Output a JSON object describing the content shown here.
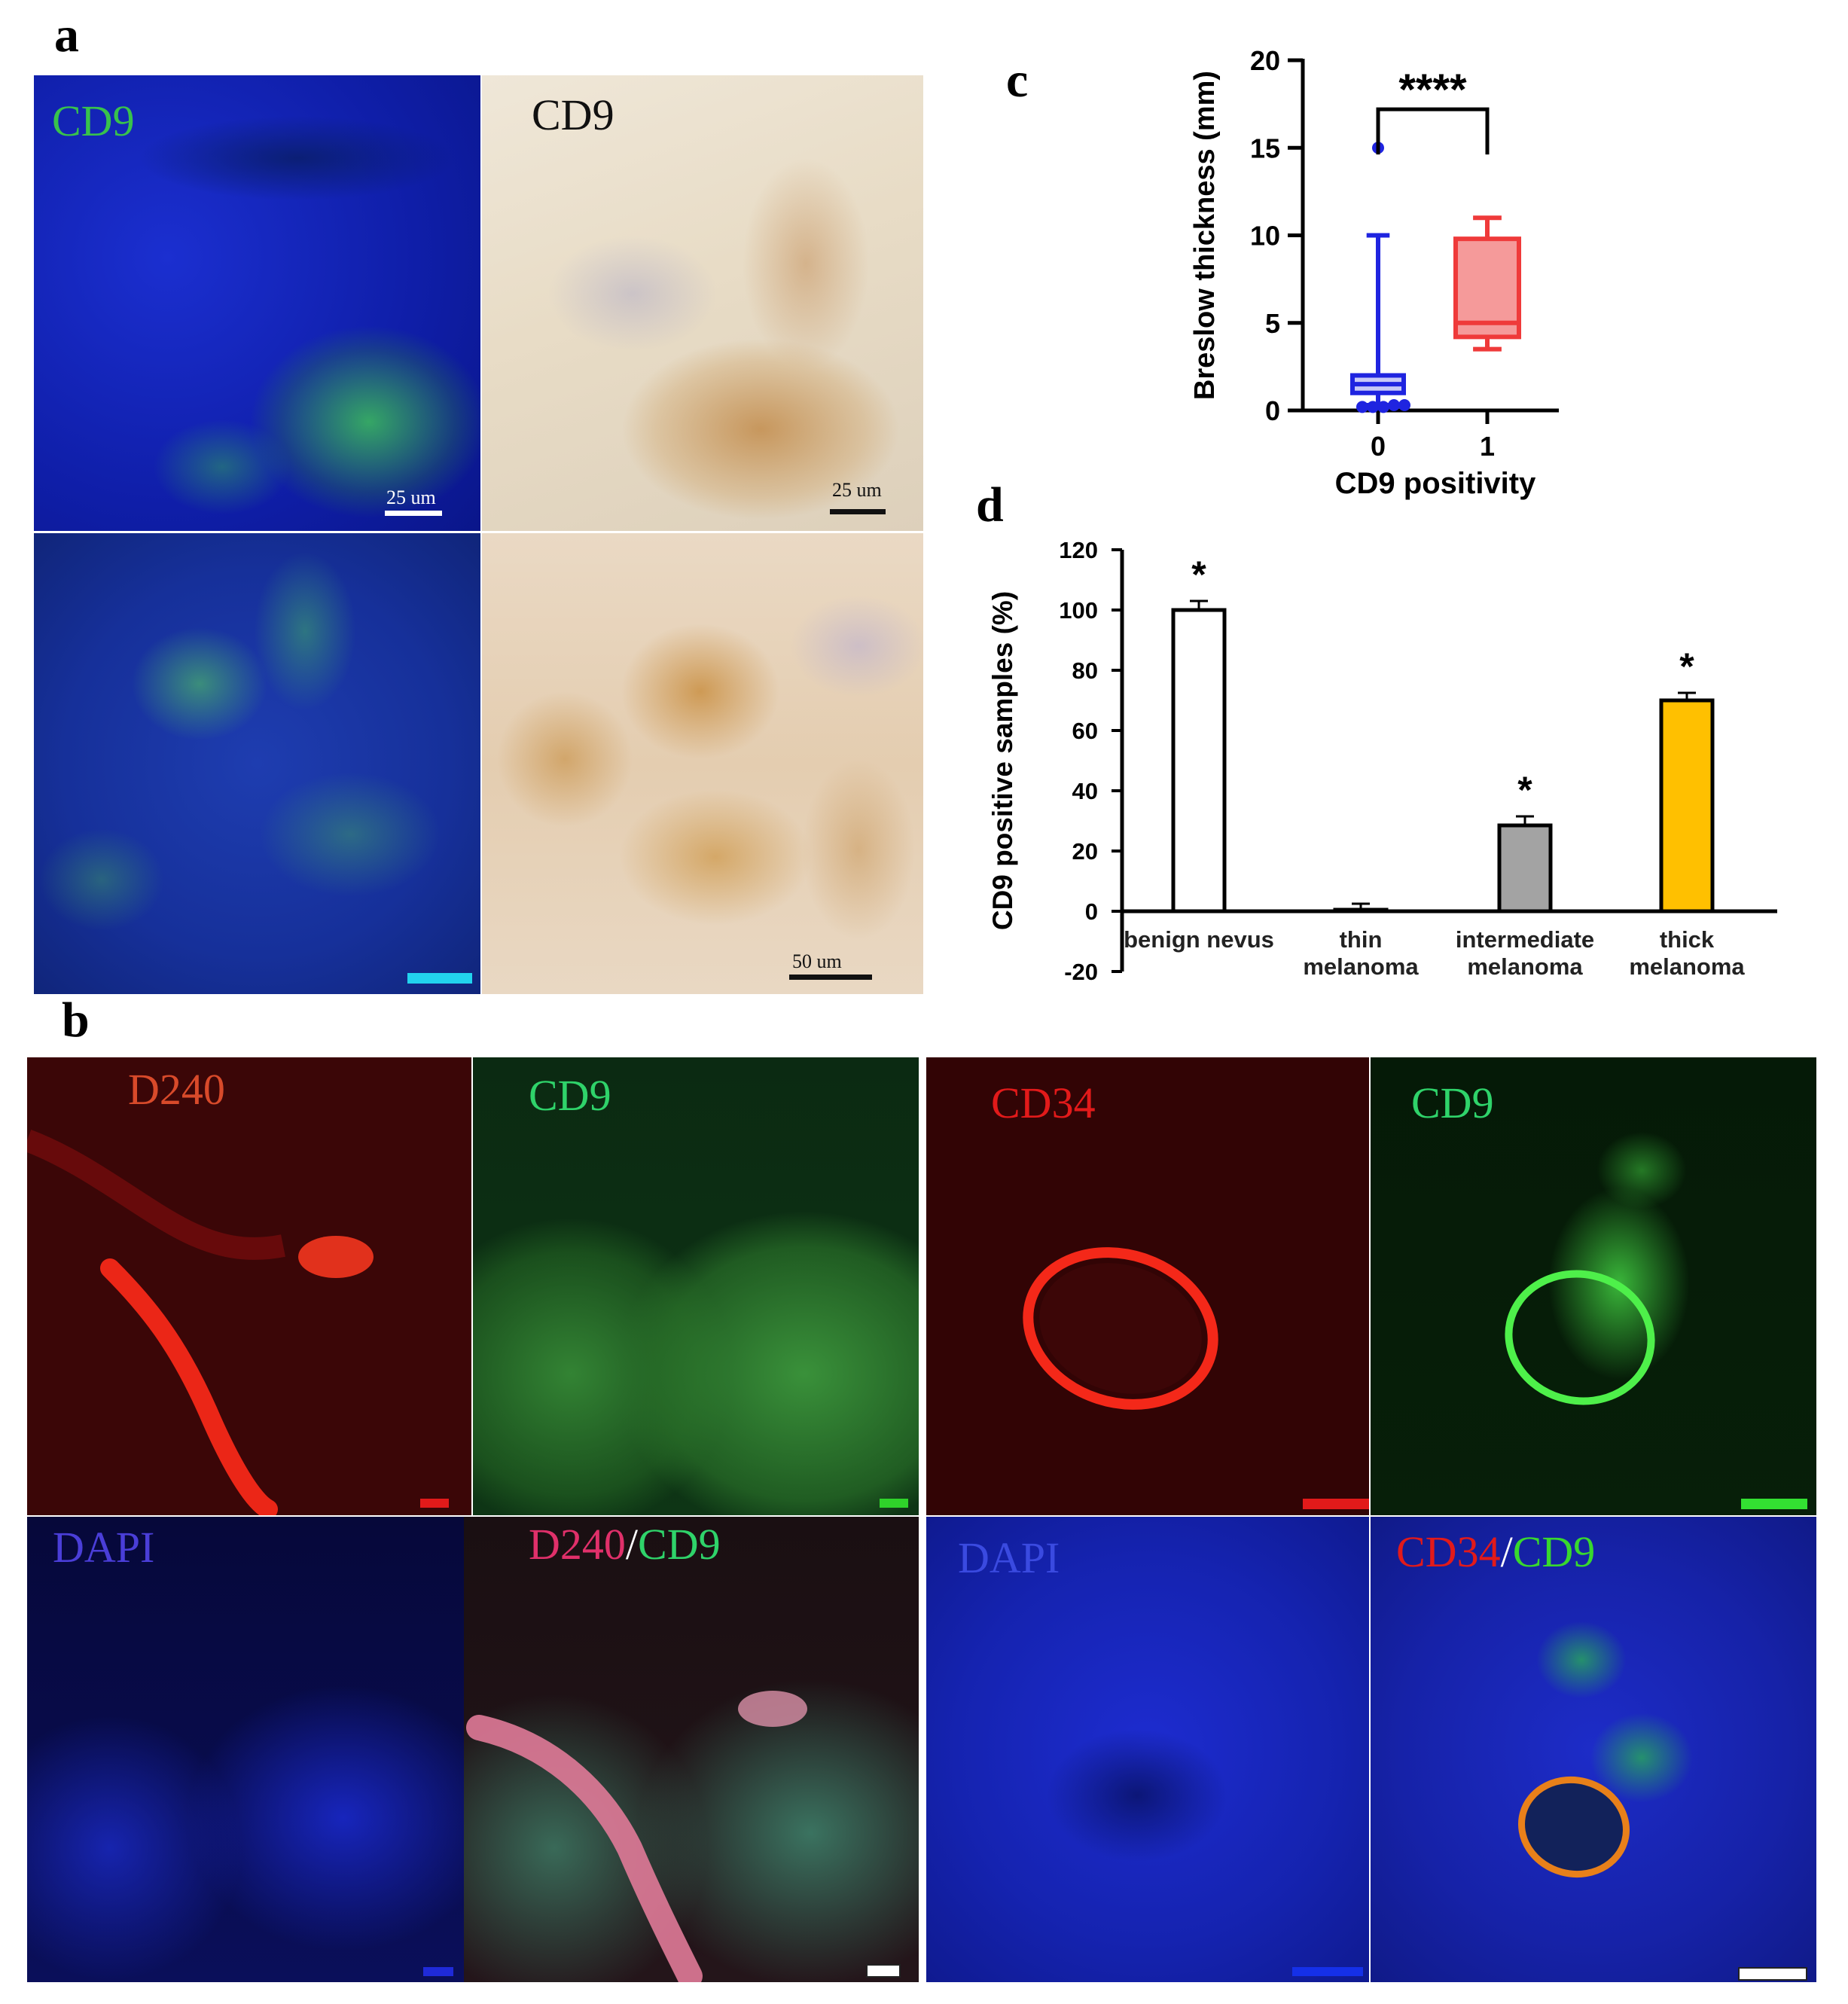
{
  "panel_letters": {
    "a": "a",
    "b": "b",
    "c": "c",
    "d": "d"
  },
  "panel_a": {
    "tiles": [
      {
        "label": "CD9",
        "label_color": "#38c24c",
        "scale": "25 um",
        "scale_color": "#ffffff",
        "bar_color": "#ffffff"
      },
      {
        "label": "CD9",
        "label_color": "#111111",
        "scale": "25 um",
        "scale_color": "#111111",
        "bar_color": "#111111"
      },
      {
        "label": "",
        "label_color": "#38c24c",
        "scale": "",
        "scale_color": "#ffffff",
        "bar_color": "#22d3ee"
      },
      {
        "label": "",
        "label_color": "#111111",
        "scale": "50 um",
        "scale_color": "#111111",
        "bar_color": "#111111"
      }
    ]
  },
  "panel_b": {
    "left_group": {
      "top_left": {
        "label": "D240",
        "color": "#d84a2a"
      },
      "top_right": {
        "label": "CD9",
        "color": "#2fd36a"
      },
      "bottom_left": {
        "label": "DAPI",
        "color": "#4a3ed8"
      },
      "bottom_right": {
        "label_a": "D240",
        "label_sep": "/",
        "label_b": "CD9",
        "color_a": "#e0306a",
        "color_sep": "#ffffff",
        "color_b": "#2fd36a"
      }
    },
    "right_group": {
      "top_left": {
        "label": "CD34",
        "color": "#e21a1a"
      },
      "top_right": {
        "label": "CD9",
        "color": "#2fd36a"
      },
      "bottom_left": {
        "label": "DAPI",
        "color": "#3a4ae0"
      },
      "bottom_right": {
        "label_a": "CD34",
        "label_sep": "/",
        "label_b": "CD9",
        "color_a": "#e21a1a",
        "color_sep": "#ffffff",
        "color_b": "#38d82e"
      }
    }
  },
  "chart_data": [
    {
      "panel": "c",
      "type": "box",
      "xlabel": "CD9 positivity",
      "ylabel": "Breslow thickness (mm)",
      "categories": [
        "0",
        "1"
      ],
      "ylim": [
        0,
        20
      ],
      "yticks": [
        "0",
        "5",
        "10",
        "15",
        "20"
      ],
      "significance": "****",
      "boxes": [
        {
          "category": "0",
          "color": "#1f24e0",
          "fill": "#1f24e0",
          "whisker_low": 0.3,
          "q1": 1.0,
          "median": 1.5,
          "q3": 2.0,
          "whisker_high": 10,
          "outliers": [
            15,
            0.2,
            0.2,
            0.2,
            0.3,
            0.3
          ]
        },
        {
          "category": "1",
          "color": "#ef3a3a",
          "fill": "#f59a9a",
          "whisker_low": 3.5,
          "q1": 4.2,
          "median": 5.0,
          "q3": 9.8,
          "whisker_high": 11,
          "outliers": []
        }
      ]
    },
    {
      "panel": "d",
      "type": "bar",
      "ylabel": "CD9 positive samples (%)",
      "ylim": [
        -20,
        120
      ],
      "yticks": [
        "-20",
        "0",
        "20",
        "40",
        "60",
        "80",
        "100",
        "120"
      ],
      "categories": [
        "benign nevus",
        "thin melanoma",
        "intermediate melanoma",
        "thick melanoma"
      ],
      "category_lines": [
        [
          "benign nevus"
        ],
        [
          "thin",
          "melanoma"
        ],
        [
          "intermediate",
          "melanoma"
        ],
        [
          "thick",
          "melanoma"
        ]
      ],
      "values": [
        100,
        0.5,
        28.5,
        70
      ],
      "errors": [
        3,
        2,
        3,
        2.5
      ],
      "colors": [
        "#ffffff",
        "#ffffff",
        "#a3a3a3",
        "#ffc000"
      ],
      "significance": [
        "*",
        "",
        "*",
        "*"
      ]
    }
  ]
}
